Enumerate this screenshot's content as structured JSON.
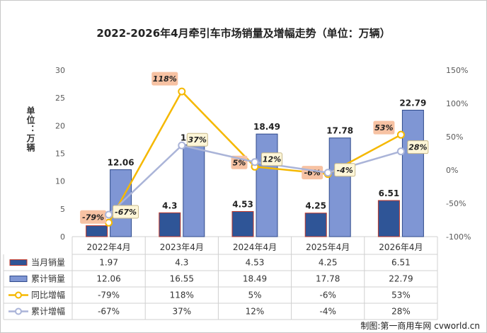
{
  "title": "2022-2026年4月牵引车市场销量及增幅走势（单位：万辆）",
  "source": "制图:第一商用车网 cvworld.cn",
  "chart_data": {
    "type": "bar",
    "categories": [
      "2022年4月",
      "2023年4月",
      "2024年4月",
      "2025年4月",
      "2026年4月"
    ],
    "ylabel": "单位：万辆",
    "ylim": [
      0,
      30
    ],
    "yticks": [
      "0",
      "5",
      "10",
      "15",
      "20",
      "25",
      "30"
    ],
    "y2lim": [
      -100,
      150
    ],
    "y2ticks": [
      "-100%",
      "-50%",
      "0%",
      "50%",
      "100%",
      "150%"
    ],
    "series": [
      {
        "name": "当月销量",
        "kind": "bar",
        "axis": "left",
        "color": "#2f5597",
        "values": [
          1.97,
          4.3,
          4.53,
          4.25,
          6.51
        ],
        "labels": [
          "1.97",
          "4.3",
          "4.53",
          "4.25",
          "6.51"
        ]
      },
      {
        "name": "累计销量",
        "kind": "bar",
        "axis": "left",
        "color": "#7f96d4",
        "values": [
          12.06,
          16.55,
          18.49,
          17.78,
          22.79
        ],
        "labels": [
          "12.06",
          "16.55",
          "18.49",
          "17.78",
          "22.79"
        ]
      },
      {
        "name": "同比增幅",
        "kind": "line",
        "axis": "right",
        "color": "#f5b800",
        "values": [
          -79,
          118,
          5,
          -6,
          53
        ],
        "labels": [
          "-79%",
          "118%",
          "5%",
          "-6%",
          "53%"
        ]
      },
      {
        "name": "累计增幅",
        "kind": "line",
        "axis": "right",
        "color": "#aab4d8",
        "values": [
          -67,
          37,
          12,
          -4,
          28
        ],
        "labels": [
          "-67%",
          "37%",
          "12%",
          "-4%",
          "28%"
        ]
      }
    ],
    "grid": false,
    "legend": "bottom data table"
  }
}
